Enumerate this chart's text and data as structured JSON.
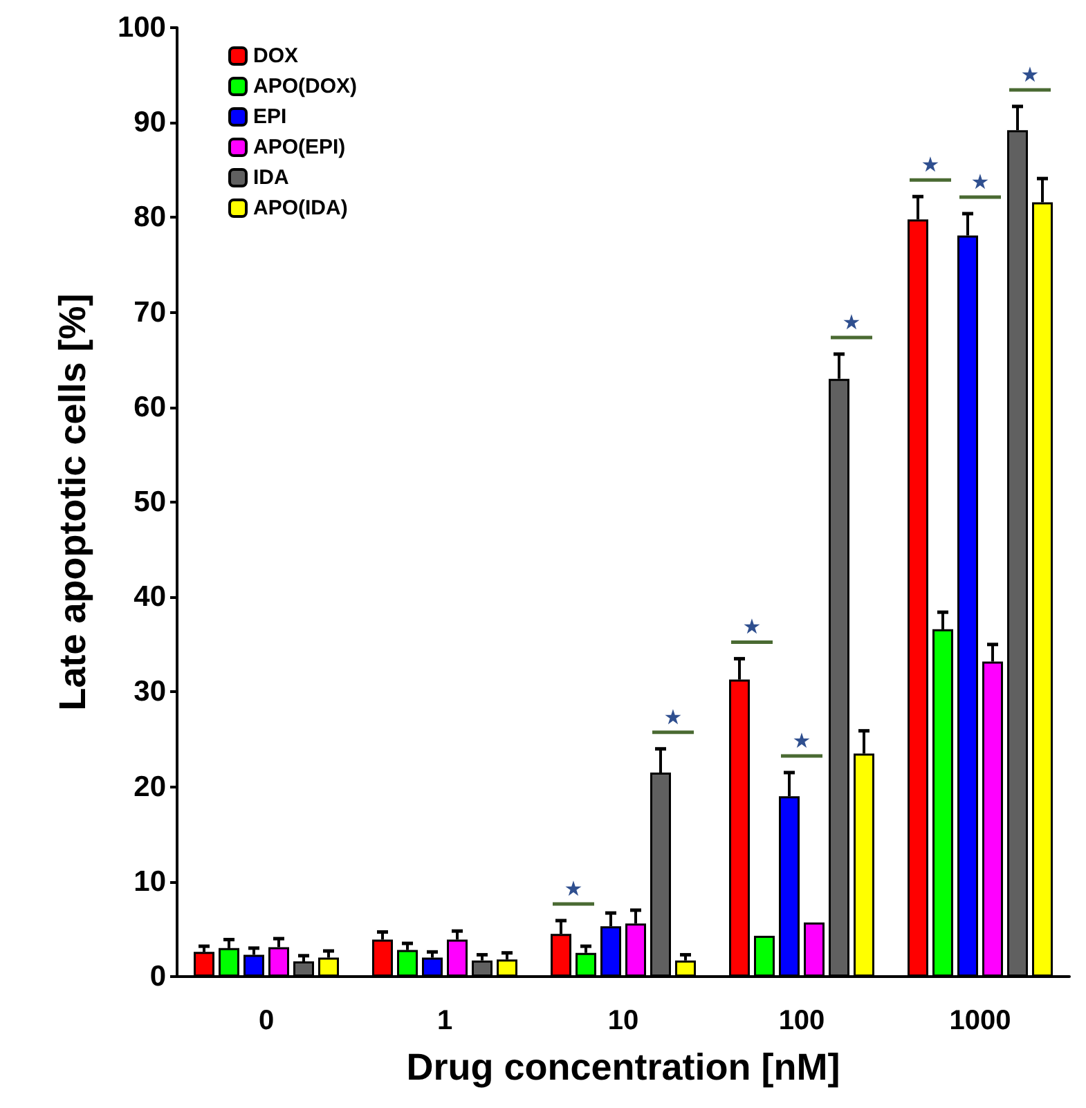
{
  "chart_data": {
    "type": "bar",
    "xlabel": "Drug concentration [nM]",
    "ylabel": "Late apoptotic cells [%]",
    "categories": [
      "0",
      "1",
      "10",
      "100",
      "1000"
    ],
    "series": [
      {
        "name": "DOX",
        "color": "#ff0000",
        "values": [
          2.6,
          3.9,
          4.5,
          31.3,
          79.8
        ],
        "errors": [
          [
            2.6,
            3.2
          ],
          [
            3.9,
            4.7
          ],
          [
            4.5,
            5.9
          ],
          [
            31.3,
            33.5
          ],
          [
            79.8,
            82.2
          ]
        ]
      },
      {
        "name": "APO(DOX)",
        "color": "#00ff00",
        "values": [
          3.0,
          2.8,
          2.5,
          4.3,
          36.6
        ],
        "errors": [
          [
            3.0,
            3.9
          ],
          [
            2.8,
            3.5
          ],
          [
            2.5,
            3.2
          ],
          null,
          [
            36.6,
            38.4
          ]
        ]
      },
      {
        "name": "EPI",
        "color": "#0000ff",
        "values": [
          2.3,
          2.0,
          5.3,
          19.0,
          78.1
        ],
        "errors": [
          [
            2.3,
            3.0
          ],
          [
            2.0,
            2.6
          ],
          [
            5.3,
            6.7
          ],
          [
            19.0,
            21.5
          ],
          [
            78.1,
            80.4
          ]
        ]
      },
      {
        "name": "APO(EPI)",
        "color": "#ff00ff",
        "values": [
          3.1,
          3.9,
          5.6,
          5.7,
          33.2
        ],
        "errors": [
          [
            3.1,
            4.0
          ],
          [
            3.9,
            4.8
          ],
          [
            5.6,
            7.0
          ],
          null,
          [
            33.2,
            35.0
          ]
        ]
      },
      {
        "name": "IDA",
        "color": "#606060",
        "values": [
          1.6,
          1.7,
          21.5,
          63.0,
          89.2
        ],
        "errors": [
          [
            1.6,
            2.2
          ],
          [
            1.7,
            2.3
          ],
          [
            21.5,
            24.0
          ],
          [
            63.0,
            65.6
          ],
          [
            89.2,
            91.7
          ]
        ]
      },
      {
        "name": "APO(IDA)",
        "color": "#ffff00",
        "values": [
          2.0,
          1.8,
          1.7,
          23.5,
          81.6
        ],
        "errors": [
          [
            2.0,
            2.7
          ],
          [
            1.8,
            2.5
          ],
          [
            1.7,
            2.3
          ],
          [
            23.5,
            25.9
          ],
          [
            81.6,
            84.1
          ]
        ]
      }
    ],
    "ylim": [
      0,
      100
    ],
    "yticks": [
      0,
      10,
      20,
      30,
      40,
      50,
      60,
      70,
      80,
      90,
      100
    ],
    "grid": false,
    "legend": "top left",
    "annotations": [
      "★",
      "★",
      "★",
      "★",
      "★",
      "★",
      "★",
      "★"
    ]
  }
}
